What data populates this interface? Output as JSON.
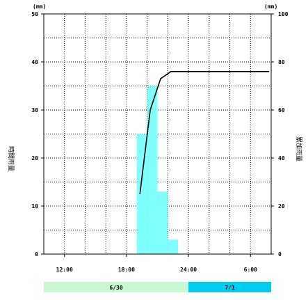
{
  "chart_data": {
    "type": "bar+line",
    "left_axis": {
      "unit": "(mm)",
      "label": "時間雨量",
      "ylim": [
        0,
        50
      ],
      "ticks": [
        0,
        10,
        20,
        30,
        40,
        50
      ]
    },
    "right_axis": {
      "unit": "(mm)",
      "label": "累加雨量",
      "ylim": [
        0,
        100
      ],
      "ticks": [
        0,
        20,
        40,
        60,
        80,
        100
      ]
    },
    "x_axis": {
      "range_hours": [
        0,
        22
      ],
      "tick_labels": [
        "12:00",
        "18:00",
        "24:00",
        "6:00"
      ],
      "tick_hours": [
        2,
        8,
        14,
        20
      ]
    },
    "bars": {
      "name": "時間雨量",
      "color": "#80ffff",
      "start_hours": [
        9,
        10,
        11,
        12
      ],
      "values": [
        25,
        35,
        13,
        3
      ]
    },
    "line": {
      "name": "累加雨量",
      "color": "#000000",
      "x_hours": [
        9.3,
        10.3,
        11.3,
        12.3,
        21.8
      ],
      "values": [
        25,
        60,
        73,
        76,
        76
      ]
    },
    "date_bands": [
      {
        "label": "6/30",
        "color": "#c8f7d2"
      },
      {
        "label": "7/1",
        "color": "#00ccee"
      }
    ],
    "grid": true
  }
}
